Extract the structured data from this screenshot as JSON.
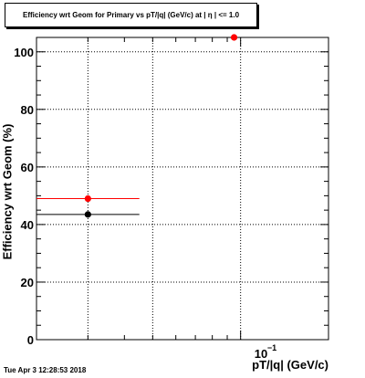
{
  "title": "Efficiency wrt Geom for Primary vs pT/|q| (GeV/c) at | η | <= 1.0",
  "timestamp": "Tue Apr  3 12:28:53 2018",
  "chart_data": {
    "type": "scatter",
    "xlabel": "pT/|q| (GeV/c)",
    "ylabel": "Efficiency wrt Geom (%)",
    "x_scale": "log",
    "xlim": [
      0.02,
      0.2
    ],
    "ylim": [
      0,
      105
    ],
    "x_tick_labels": [
      "10",
      "−1"
    ],
    "y_ticks": [
      0,
      20,
      40,
      60,
      80,
      100
    ],
    "grid": true,
    "series": [
      {
        "color": "#ff0000",
        "points": [
          {
            "x": 0.03,
            "xlow": 0.02,
            "xhigh": 0.045,
            "y": 49
          },
          {
            "x": 0.095,
            "y": 105
          }
        ]
      },
      {
        "color": "#000000",
        "points": [
          {
            "x": 0.03,
            "xlow": 0.02,
            "xhigh": 0.045,
            "y": 43.5
          }
        ]
      }
    ]
  }
}
